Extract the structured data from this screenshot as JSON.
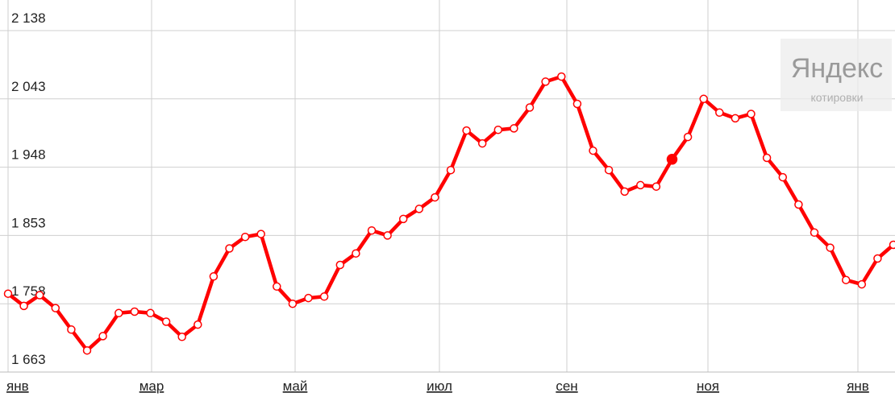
{
  "chart_data": {
    "type": "line",
    "y_ticks": [
      "2 138",
      "2 043",
      "1 948",
      "1 853",
      "1 758",
      "1 663"
    ],
    "y_tick_values": [
      2138,
      2043,
      1948,
      1853,
      1758,
      1663
    ],
    "ylim": [
      1663,
      2138
    ],
    "x_ticks": [
      "янв",
      "мар",
      "май",
      "июл",
      "сен",
      "ноя",
      "янв"
    ],
    "grid": true,
    "line_color": "#ff0000",
    "highlight_index": 42,
    "series": [
      {
        "values": [
          1772,
          1755,
          1770,
          1752,
          1722,
          1693,
          1713,
          1745,
          1747,
          1745,
          1733,
          1712,
          1729,
          1796,
          1835,
          1851,
          1855,
          1782,
          1758,
          1766,
          1768,
          1812,
          1828,
          1860,
          1853,
          1876,
          1890,
          1906,
          1944,
          1999,
          1981,
          2000,
          2002,
          2031,
          2067,
          2074,
          2036,
          1971,
          1944,
          1914,
          1923,
          1921,
          1959,
          1990,
          2043,
          2024,
          2016,
          2022,
          1961,
          1934,
          1896,
          1857,
          1836,
          1791,
          1785,
          1821,
          1840
        ]
      }
    ],
    "watermark": {
      "title": "Яндекс",
      "subtitle": "котировки"
    }
  }
}
